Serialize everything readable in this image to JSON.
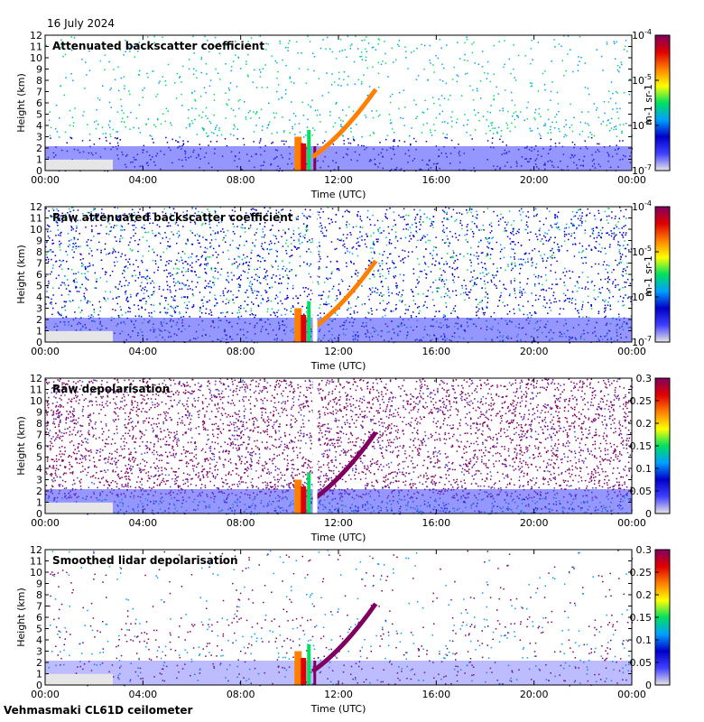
{
  "date": "16 July 2024",
  "footer": "Vehmasmaki CL61D ceilometer",
  "colorscale": [
    "#e6e6e6",
    "#4040ff",
    "#0000c8",
    "#00a0ff",
    "#00e060",
    "#ffff00",
    "#ff8000",
    "#e00000",
    "#800060"
  ],
  "chart_data": [
    {
      "type": "heatmap",
      "title": "Attenuated backscatter coefficient",
      "xlabel": "Time (UTC)",
      "ylabel": "Height (km)",
      "x_ticks": [
        "00:00",
        "04:00",
        "08:00",
        "12:00",
        "16:00",
        "20:00",
        "00:00"
      ],
      "y_ticks": [
        "0",
        "1",
        "2",
        "3",
        "4",
        "5",
        "6",
        "7",
        "8",
        "9",
        "10",
        "11",
        "12"
      ],
      "ylim": [
        0,
        12
      ],
      "colorbar": {
        "scale": "log",
        "range": [
          1e-07,
          0.0001
        ],
        "ticks": [
          "10-7",
          "10-6",
          "10-5",
          "10-4"
        ],
        "label": "m-1 sr-1"
      },
      "data_gap": false,
      "noise": "low"
    },
    {
      "type": "heatmap",
      "title": "Raw attenuated backscatter coefficient",
      "xlabel": "Time (UTC)",
      "ylabel": "Height (km)",
      "x_ticks": [
        "00:00",
        "04:00",
        "08:00",
        "12:00",
        "16:00",
        "20:00",
        "00:00"
      ],
      "y_ticks": [
        "0",
        "1",
        "2",
        "3",
        "4",
        "5",
        "6",
        "7",
        "8",
        "9",
        "10",
        "11",
        "12"
      ],
      "ylim": [
        0,
        12
      ],
      "colorbar": {
        "scale": "log",
        "range": [
          1e-07,
          0.0001
        ],
        "ticks": [
          "10-7",
          "10-6",
          "10-5",
          "10-4"
        ],
        "label": "m-1 sr-1"
      },
      "data_gap": true,
      "noise": "high-blue"
    },
    {
      "type": "heatmap",
      "title": "Raw depolarisation",
      "xlabel": "Time (UTC)",
      "ylabel": "Height (km)",
      "x_ticks": [
        "00:00",
        "04:00",
        "08:00",
        "12:00",
        "16:00",
        "20:00",
        "00:00"
      ],
      "y_ticks": [
        "0",
        "1",
        "2",
        "3",
        "4",
        "5",
        "6",
        "7",
        "8",
        "9",
        "10",
        "11",
        "12"
      ],
      "ylim": [
        0,
        12
      ],
      "colorbar": {
        "scale": "linear",
        "range": [
          0,
          0.3
        ],
        "ticks": [
          "0",
          "0.05",
          "0.1",
          "0.15",
          "0.2",
          "0.25",
          "0.3"
        ],
        "label": ""
      },
      "data_gap": true,
      "noise": "high-purple"
    },
    {
      "type": "heatmap",
      "title": "Smoothed lidar depolarisation",
      "xlabel": "Time (UTC)",
      "ylabel": "Height (km)",
      "x_ticks": [
        "00:00",
        "04:00",
        "08:00",
        "12:00",
        "16:00",
        "20:00",
        "00:00"
      ],
      "y_ticks": [
        "0",
        "1",
        "2",
        "3",
        "4",
        "5",
        "6",
        "7",
        "8",
        "9",
        "10",
        "11",
        "12"
      ],
      "ylim": [
        0,
        12
      ],
      "colorbar": {
        "scale": "linear",
        "range": [
          0,
          0.3
        ],
        "ticks": [
          "0",
          "0.05",
          "0.1",
          "0.15",
          "0.2",
          "0.25",
          "0.3"
        ],
        "label": ""
      },
      "data_gap": false,
      "noise": "sparse-purple"
    }
  ]
}
